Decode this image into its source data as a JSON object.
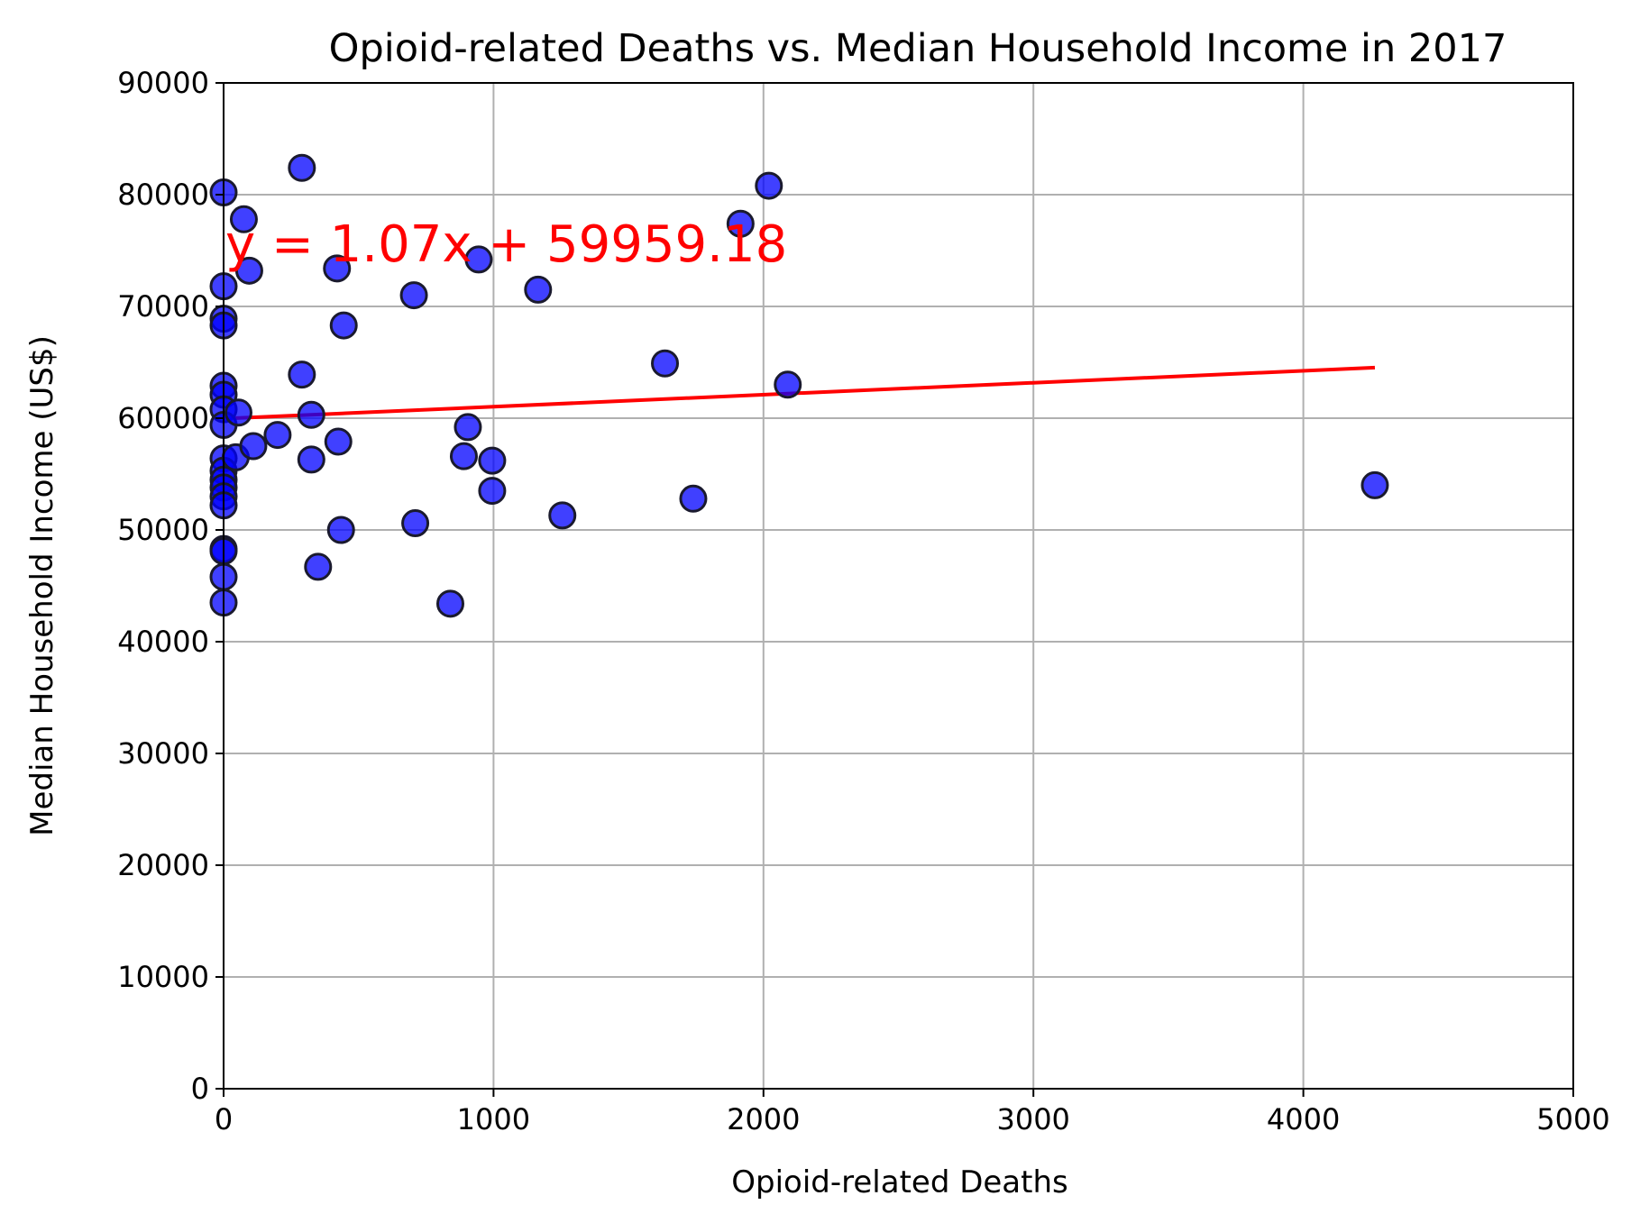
{
  "chart_data": {
    "type": "scatter",
    "title": "Opioid-related Deaths vs. Median Household Income in 2017",
    "xlabel": "Opioid-related Deaths",
    "ylabel": "Median Household Income (US$)",
    "xlim": [
      0,
      5000
    ],
    "ylim": [
      0,
      90000
    ],
    "xticks": [
      0,
      1000,
      2000,
      3000,
      4000,
      5000
    ],
    "yticks": [
      0,
      10000,
      20000,
      30000,
      40000,
      50000,
      60000,
      70000,
      80000,
      90000
    ],
    "grid": true,
    "point_color": "#0000ff",
    "point_edge_color": "#1a1a2e",
    "regression": {
      "label": "y = 1.07x + 59959.18",
      "slope": 1.07,
      "intercept": 59959.18,
      "x_range": [
        0,
        4265
      ],
      "color": "#ff0000"
    },
    "points": [
      {
        "x": 0,
        "y": 80200
      },
      {
        "x": 0,
        "y": 71800
      },
      {
        "x": 0,
        "y": 68900
      },
      {
        "x": 0,
        "y": 68300
      },
      {
        "x": 0,
        "y": 62900
      },
      {
        "x": 0,
        "y": 62100
      },
      {
        "x": 0,
        "y": 60800
      },
      {
        "x": 0,
        "y": 59400
      },
      {
        "x": 0,
        "y": 56400
      },
      {
        "x": 0,
        "y": 55300
      },
      {
        "x": 0,
        "y": 54500
      },
      {
        "x": 0,
        "y": 53800
      },
      {
        "x": 0,
        "y": 53000
      },
      {
        "x": 0,
        "y": 52200
      },
      {
        "x": 0,
        "y": 48300
      },
      {
        "x": 0,
        "y": 48100
      },
      {
        "x": 0,
        "y": 45800
      },
      {
        "x": 0,
        "y": 43500
      },
      {
        "x": 75,
        "y": 77800
      },
      {
        "x": 95,
        "y": 73200
      },
      {
        "x": 55,
        "y": 60500
      },
      {
        "x": 45,
        "y": 56500
      },
      {
        "x": 110,
        "y": 57500
      },
      {
        "x": 200,
        "y": 58500
      },
      {
        "x": 290,
        "y": 82400
      },
      {
        "x": 290,
        "y": 63900
      },
      {
        "x": 325,
        "y": 60300
      },
      {
        "x": 325,
        "y": 56300
      },
      {
        "x": 350,
        "y": 46700
      },
      {
        "x": 420,
        "y": 73400
      },
      {
        "x": 445,
        "y": 68300
      },
      {
        "x": 425,
        "y": 57900
      },
      {
        "x": 435,
        "y": 50000
      },
      {
        "x": 705,
        "y": 71000
      },
      {
        "x": 710,
        "y": 50600
      },
      {
        "x": 840,
        "y": 43400
      },
      {
        "x": 890,
        "y": 56600
      },
      {
        "x": 905,
        "y": 59200
      },
      {
        "x": 945,
        "y": 74200
      },
      {
        "x": 995,
        "y": 56200
      },
      {
        "x": 995,
        "y": 53500
      },
      {
        "x": 1165,
        "y": 71500
      },
      {
        "x": 1255,
        "y": 51300
      },
      {
        "x": 1635,
        "y": 64900
      },
      {
        "x": 1740,
        "y": 52800
      },
      {
        "x": 1915,
        "y": 77400
      },
      {
        "x": 2020,
        "y": 80800
      },
      {
        "x": 2090,
        "y": 63000
      },
      {
        "x": 4265,
        "y": 54000
      }
    ]
  }
}
